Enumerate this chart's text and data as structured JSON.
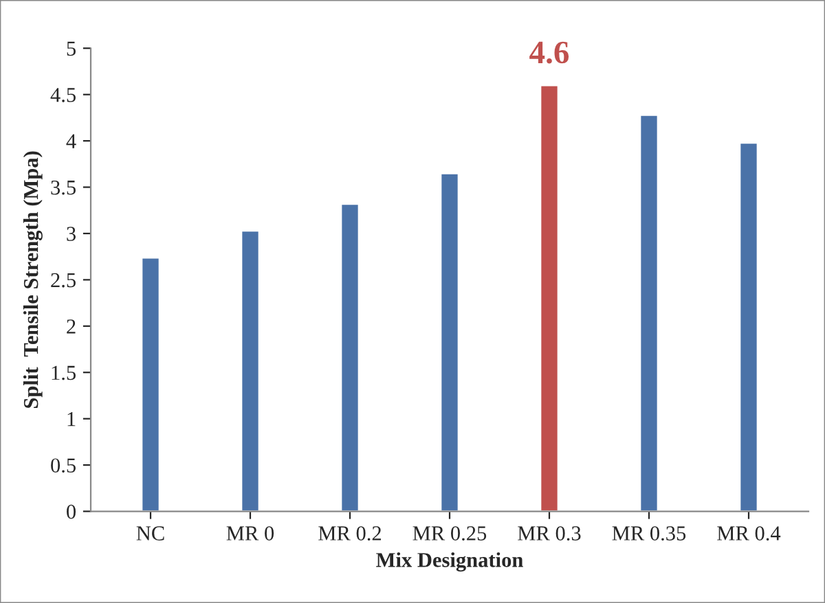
{
  "chart_data": {
    "type": "bar",
    "xlabel": "Mix Designation",
    "ylabel": "Split  Tensile Strength (Mpa)",
    "categories": [
      "NC",
      "MR 0",
      "MR 0.2",
      "MR 0.25",
      "MR 0.3",
      "MR 0.35",
      "MR 0.4"
    ],
    "values": [
      2.74,
      3.03,
      3.32,
      3.65,
      4.6,
      4.28,
      3.98
    ],
    "colors": [
      "#4a72a8",
      "#4a72a8",
      "#4a72a8",
      "#4a72a8",
      "#c0504d",
      "#4a72a8",
      "#4a72a8"
    ],
    "value_labels": [
      null,
      null,
      null,
      null,
      "4.6",
      null,
      null
    ],
    "ylim": [
      0,
      5
    ],
    "yticks": [
      0,
      0.5,
      1,
      1.5,
      2,
      2.5,
      3,
      3.5,
      4,
      4.5,
      5
    ],
    "grid": false,
    "legend": false
  }
}
